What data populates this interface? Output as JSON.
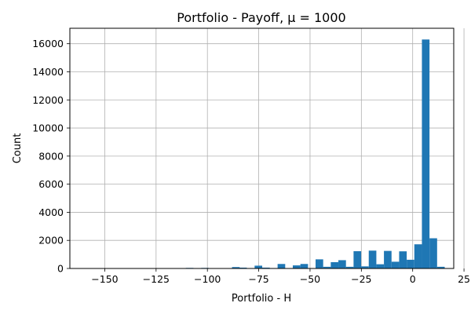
{
  "chart_data": {
    "type": "histogram",
    "title": "Portfolio - Payoff, μ = 1000",
    "xlabel": "Portfolio - H",
    "ylabel": "Count",
    "xlim": [
      -167,
      20
    ],
    "ylim": [
      0,
      17100
    ],
    "grid": true,
    "x_ticks": [
      -150,
      -125,
      -100,
      -75,
      -50,
      -25,
      0,
      25
    ],
    "x_tick_labels": [
      "−150",
      "−125",
      "−100",
      "−75",
      "−50",
      "−25",
      "0",
      "25"
    ],
    "y_ticks": [
      0,
      2000,
      4000,
      6000,
      8000,
      10000,
      12000,
      14000,
      16000
    ],
    "y_tick_labels": [
      "0",
      "2000",
      "4000",
      "6000",
      "8000",
      "10000",
      "12000",
      "14000",
      "16000"
    ],
    "bin_width": 3.7,
    "bins": [
      {
        "x0": -110.5,
        "value": 40
      },
      {
        "x0": -103.0,
        "value": 40
      },
      {
        "x0": -88.0,
        "value": 100
      },
      {
        "x0": -84.5,
        "value": 60
      },
      {
        "x0": -77.0,
        "value": 200
      },
      {
        "x0": -73.3,
        "value": 60
      },
      {
        "x0": -69.5,
        "value": 30
      },
      {
        "x0": -65.8,
        "value": 320
      },
      {
        "x0": -58.4,
        "value": 220
      },
      {
        "x0": -54.7,
        "value": 320
      },
      {
        "x0": -47.3,
        "value": 650
      },
      {
        "x0": -43.6,
        "value": 120
      },
      {
        "x0": -39.9,
        "value": 450
      },
      {
        "x0": -36.2,
        "value": 590
      },
      {
        "x0": -32.5,
        "value": 120
      },
      {
        "x0": -28.8,
        "value": 1230
      },
      {
        "x0": -25.1,
        "value": 150
      },
      {
        "x0": -21.4,
        "value": 1270
      },
      {
        "x0": -17.7,
        "value": 300
      },
      {
        "x0": -14.0,
        "value": 1250
      },
      {
        "x0": -10.3,
        "value": 480
      },
      {
        "x0": -6.6,
        "value": 1220
      },
      {
        "x0": -2.9,
        "value": 620
      },
      {
        "x0": 0.8,
        "value": 1720
      },
      {
        "x0": 4.5,
        "value": 16300
      },
      {
        "x0": 8.2,
        "value": 2150
      },
      {
        "x0": 11.9,
        "value": 120
      }
    ]
  }
}
